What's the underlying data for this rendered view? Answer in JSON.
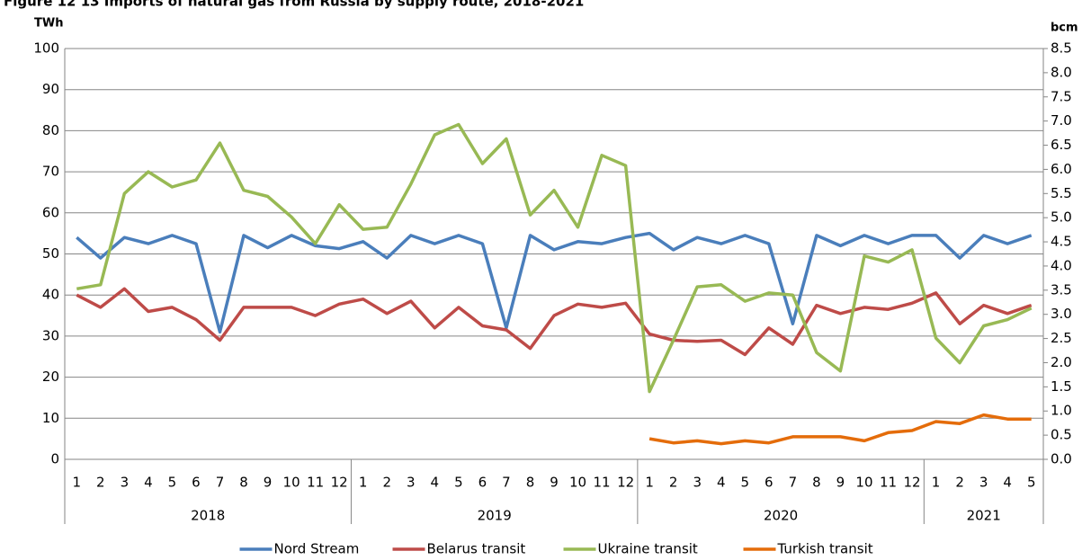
{
  "chart_data": {
    "type": "line",
    "title": "Figure 12 13 Imports of natural gas from Russia by supply route, 2018-2021",
    "y_label": "TWh",
    "y2_label": "bcm",
    "year_groups": [
      {
        "label": "2018",
        "months": [
          "1",
          "2",
          "3",
          "4",
          "5",
          "6",
          "7",
          "8",
          "9",
          "10",
          "11",
          "12"
        ]
      },
      {
        "label": "2019",
        "months": [
          "1",
          "2",
          "3",
          "4",
          "5",
          "6",
          "7",
          "8",
          "9",
          "10",
          "11",
          "12"
        ]
      },
      {
        "label": "2020",
        "months": [
          "1",
          "2",
          "3",
          "4",
          "5",
          "6",
          "7",
          "8",
          "9",
          "10",
          "11",
          "12"
        ]
      },
      {
        "label": "2021",
        "months": [
          "1",
          "2",
          "3",
          "4",
          "5"
        ]
      }
    ],
    "ylim": [
      0,
      100
    ],
    "yticks": [
      0,
      10,
      20,
      30,
      40,
      50,
      60,
      70,
      80,
      90,
      100
    ],
    "y2lim": [
      0,
      8.5
    ],
    "y2ticks": [
      {
        "value": 0,
        "label": "0.0"
      },
      0.5,
      {
        "value": 1,
        "label": "1.0"
      },
      1.5,
      {
        "value": 2,
        "label": "2.0"
      },
      2.5,
      {
        "value": 3,
        "label": "3.0"
      },
      3.5,
      {
        "value": 4,
        "label": "4.0"
      },
      4.5,
      {
        "value": 5,
        "label": "5.0"
      },
      5.5,
      {
        "value": 6,
        "label": "6.0"
      },
      6.5,
      {
        "value": 7,
        "label": "7.0"
      },
      7.5,
      {
        "value": 8,
        "label": "8.0"
      },
      8.5
    ],
    "grid": true,
    "legend": "bottom",
    "series": [
      {
        "name": "Nord Stream",
        "color": "#4a7ebb",
        "values": [
          54,
          49,
          54,
          52.5,
          54.5,
          52.5,
          31,
          54.5,
          51.5,
          54.5,
          52,
          51.3,
          53,
          49,
          54.5,
          52.5,
          54.5,
          52.5,
          32,
          54.5,
          51,
          53,
          52.5,
          54,
          55,
          51,
          54,
          52.5,
          54.5,
          52.5,
          33,
          54.5,
          52,
          54.5,
          52.5,
          54.5,
          54.5,
          49,
          54.5,
          52.5,
          54.5
        ]
      },
      {
        "name": "Belarus transit",
        "color": "#be4b48",
        "values": [
          40,
          37,
          41.5,
          36,
          37,
          34,
          29,
          37,
          37,
          37,
          35,
          37.8,
          39,
          35.5,
          38.5,
          32,
          37,
          32.5,
          31.5,
          27,
          35,
          37.8,
          37,
          38,
          30.5,
          29,
          28.7,
          29,
          25.5,
          32,
          28,
          37.5,
          35.5,
          37,
          36.5,
          38,
          40.5,
          33,
          37.5,
          35.5,
          37.5
        ]
      },
      {
        "name": "Ukraine transit",
        "color": "#98b954",
        "values": [
          41.5,
          42.5,
          64.7,
          70,
          66.3,
          68,
          77,
          65.5,
          64,
          59,
          52.5,
          62,
          56,
          56.5,
          67,
          79,
          81.5,
          72,
          78,
          59.5,
          65.5,
          56.5,
          74,
          71.5,
          16.5,
          29,
          42,
          42.5,
          38.5,
          40.5,
          40,
          26,
          21.5,
          49.5,
          48,
          51,
          29.5,
          23.5,
          32.5,
          34,
          36.8
        ]
      },
      {
        "name": "Turkish transit",
        "color": "#e46c0a",
        "values": [
          null,
          null,
          null,
          null,
          null,
          null,
          null,
          null,
          null,
          null,
          null,
          null,
          null,
          null,
          null,
          null,
          null,
          null,
          null,
          null,
          null,
          null,
          null,
          null,
          5,
          4,
          4.5,
          3.8,
          4.5,
          4,
          5.5,
          5.5,
          5.5,
          4.5,
          6.5,
          7,
          9.2,
          8.7,
          10.8,
          9.8,
          9.8
        ]
      }
    ]
  }
}
